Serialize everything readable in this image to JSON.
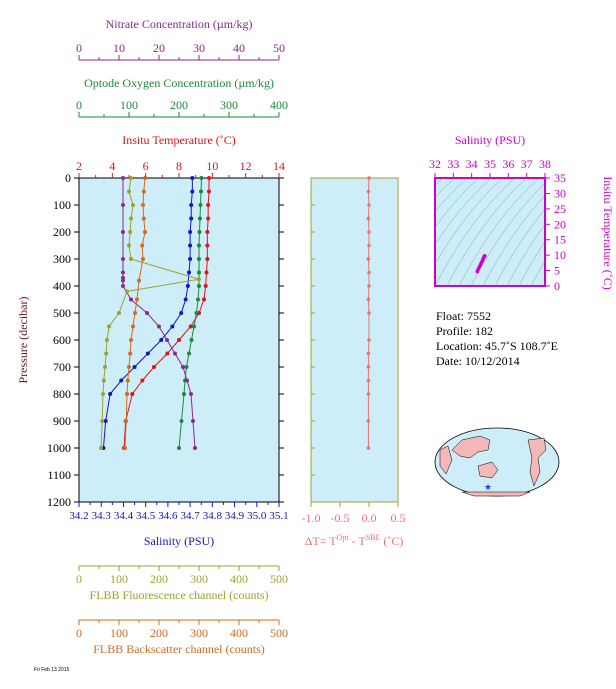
{
  "colors": {
    "panel_bg": "#cdeef8",
    "nitrate": "#8b2a8b",
    "oxygen": "#1a8a3a",
    "temperature": "#e0141a",
    "salinity": "#1414c8",
    "fluorescence": "#a0a030",
    "backscatter": "#d46a1e",
    "delta_temp": "#f07070",
    "ts_axis": "#cc00cc",
    "map_land": "#f4b8b8",
    "map_ocean": "#cdeef8",
    "map_marker": "#1e3cdc"
  },
  "labels": {
    "nitrate_axis": "Nitrate Concentration (µm/kg)",
    "oxygen_axis": "Optode Oxygen Concentration (µm/kg)",
    "temperature_axis": "Insitu Temperature (˚C)",
    "pressure_axis": "Pressure (decibar)",
    "salinity_axis": "Salinity (PSU)",
    "fluorescence_axis": "FLBB Fluorescence channel (counts)",
    "backscatter_axis": "FLBB Backscatter channel (counts)",
    "delta_axis_prefix": "ΔT= T",
    "delta_axis_sup1": "Opt",
    "delta_axis_mid": " - T",
    "delta_axis_sup2": "SBE",
    "delta_axis_suffix": " (˚C)",
    "ts_top_axis": "Salinity (PSU)",
    "ts_right_axis": "Insitu Temperature (˚C)"
  },
  "ticks": {
    "nitrate": [
      "0",
      "10",
      "20",
      "30",
      "40",
      "50"
    ],
    "oxygen": [
      "0",
      "100",
      "200",
      "300",
      "400"
    ],
    "temperature": [
      "2",
      "4",
      "6",
      "8",
      "10",
      "12",
      "14"
    ],
    "pressure": [
      "0",
      "100",
      "200",
      "300",
      "400",
      "500",
      "600",
      "700",
      "800",
      "900",
      "1000",
      "1100",
      "1200"
    ],
    "salinity": [
      "34.2",
      "34.3",
      "34.4",
      "34.5",
      "34.6",
      "34.7",
      "34.8",
      "34.9",
      "35.0",
      "35.1"
    ],
    "fluorescence": [
      "0",
      "100",
      "200",
      "300",
      "400",
      "500"
    ],
    "backscatter": [
      "0",
      "100",
      "200",
      "300",
      "400",
      "500"
    ],
    "delta": [
      "-1.0",
      "-0.5",
      "0.0",
      "0.5"
    ],
    "ts_salinity": [
      "32",
      "33",
      "34",
      "35",
      "36",
      "37",
      "38"
    ],
    "ts_temperature": [
      "0",
      "5",
      "10",
      "15",
      "20",
      "25",
      "30",
      "35"
    ]
  },
  "info": {
    "float": "Float:  7552",
    "profile": "Profile:  182",
    "location": "Location:  45.7˚S  108.7˚E",
    "date": "Date:  10/12/2014"
  },
  "stamp": "Fri Feb 13 2015 ",
  "chart_data": [
    {
      "type": "line",
      "title": "",
      "ylabel": "Pressure (decibar)",
      "ylim": [
        1200,
        0
      ],
      "series": [
        {
          "name": "Insitu Temperature (˚C)",
          "xlim": [
            2,
            14
          ],
          "x": [
            9.8,
            9.8,
            9.75,
            9.75,
            9.7,
            9.7,
            9.7,
            9.65,
            9.6,
            9.5,
            9.2,
            8.7,
            8.0,
            7.3,
            6.5,
            5.8,
            5.2,
            4.8,
            4.7
          ],
          "y": [
            0,
            50,
            100,
            150,
            200,
            250,
            300,
            350,
            400,
            450,
            500,
            550,
            600,
            650,
            700,
            750,
            800,
            900,
            1000
          ]
        },
        {
          "name": "Salinity (PSU)",
          "xlim": [
            34.2,
            35.1
          ],
          "x": [
            34.71,
            34.71,
            34.705,
            34.705,
            34.7,
            34.7,
            34.7,
            34.695,
            34.69,
            34.68,
            34.66,
            34.62,
            34.57,
            34.51,
            34.45,
            34.39,
            34.34,
            34.32,
            34.31
          ],
          "y": [
            0,
            50,
            100,
            150,
            200,
            250,
            300,
            350,
            400,
            450,
            500,
            550,
            600,
            650,
            700,
            750,
            800,
            900,
            1000
          ]
        },
        {
          "name": "Optode Oxygen Concentration (µm/kg)",
          "xlim": [
            0,
            400
          ],
          "x": [
            245,
            244,
            243,
            242,
            241,
            240,
            240,
            240,
            240,
            238,
            235,
            230,
            225,
            220,
            215,
            212,
            210,
            205,
            200
          ],
          "y": [
            0,
            50,
            100,
            150,
            200,
            250,
            300,
            350,
            400,
            450,
            500,
            550,
            600,
            650,
            700,
            750,
            800,
            900,
            1000
          ]
        },
        {
          "name": "Nitrate Concentration (µm/kg)",
          "xlim": [
            0,
            50
          ],
          "x": [
            11,
            11,
            11,
            11,
            11,
            11,
            11,
            11,
            13,
            17,
            20,
            22,
            24,
            26,
            27,
            28,
            28.5,
            29
          ],
          "y": [
            0,
            100,
            200,
            300,
            350,
            370,
            380,
            400,
            450,
            500,
            550,
            600,
            650,
            700,
            750,
            800,
            900,
            1000
          ]
        },
        {
          "name": "FLBB Fluorescence channel (counts)",
          "xlim": [
            0,
            500
          ],
          "x": [
            130,
            125,
            135,
            130,
            128,
            125,
            130,
            300,
            120,
            100,
            75,
            70,
            68,
            65,
            62,
            60,
            58,
            55
          ],
          "y": [
            0,
            50,
            100,
            150,
            200,
            250,
            300,
            375,
            420,
            500,
            550,
            600,
            650,
            700,
            750,
            800,
            900,
            1000
          ]
        },
        {
          "name": "FLBB Backscatter channel (counts)",
          "xlim": [
            0,
            500
          ],
          "x": [
            165,
            162,
            160,
            162,
            165,
            158,
            160,
            150,
            145,
            140,
            135,
            130,
            128,
            125,
            122,
            120,
            118,
            115
          ],
          "y": [
            0,
            50,
            100,
            150,
            200,
            250,
            300,
            380,
            450,
            500,
            550,
            600,
            650,
            700,
            750,
            800,
            900,
            1000
          ]
        }
      ]
    },
    {
      "type": "line",
      "xlabel": "ΔT= TOpt - TSBE (˚C)",
      "xlim": [
        -1.0,
        0.5
      ],
      "ylim": [
        1200,
        0
      ],
      "series": [
        {
          "name": "ΔT",
          "x": [
            0.0,
            -0.01,
            0.0,
            -0.01,
            0.0,
            0.0,
            -0.01,
            0.0,
            0.0,
            -0.01,
            0.0,
            0.0,
            -0.01,
            -0.01,
            -0.01,
            -0.01,
            -0.01,
            -0.01
          ],
          "y": [
            0,
            50,
            100,
            150,
            200,
            250,
            300,
            350,
            400,
            450,
            500,
            600,
            650,
            700,
            750,
            800,
            900,
            1000
          ]
        }
      ]
    },
    {
      "type": "scatter",
      "xlabel": "Salinity (PSU)",
      "ylabel": "Insitu Temperature (˚C)",
      "xlim": [
        32,
        38
      ],
      "ylim": [
        0,
        35
      ],
      "series": [
        {
          "name": "T-S",
          "x": [
            34.31,
            34.34,
            34.39,
            34.45,
            34.51,
            34.57,
            34.62,
            34.66,
            34.68,
            34.7,
            34.71
          ],
          "y": [
            4.7,
            5.2,
            5.8,
            6.5,
            7.3,
            8.0,
            8.7,
            9.2,
            9.5,
            9.7,
            9.8
          ]
        }
      ]
    }
  ]
}
